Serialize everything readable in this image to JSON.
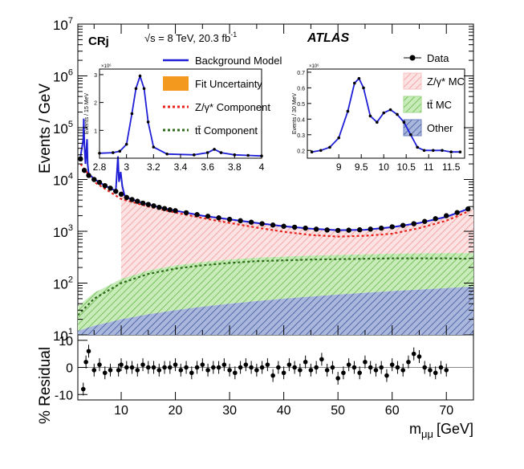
{
  "chart_data": [
    {
      "type": "area",
      "panel": "main",
      "ylabel": "Events / GeV",
      "xlim": [
        2,
        75
      ],
      "ylim_log10": [
        1,
        7
      ],
      "yscale": "log",
      "y_ticks": [
        {
          "label": "10",
          "exp": "1",
          "v": 10
        },
        {
          "label": "10",
          "exp": "2",
          "v": 100
        },
        {
          "label": "10",
          "exp": "3",
          "v": 1000
        },
        {
          "label": "10",
          "exp": "4",
          "v": 10000
        },
        {
          "label": "10",
          "exp": "5",
          "v": 100000
        },
        {
          "label": "10",
          "exp": "6",
          "v": 1000000
        },
        {
          "label": "10",
          "exp": "7",
          "v": 10000000
        }
      ],
      "annotations": {
        "region": "CRj",
        "energy": "√s = 8 TeV, 20.3 fb",
        "energy_sup": "-1",
        "experiment": "ATLAS"
      },
      "legend_left": [
        {
          "label": "Background Model",
          "style": "line",
          "color": "#1f1fd6"
        },
        {
          "label": "Fit Uncertainty",
          "style": "box",
          "color": "#f39a1e"
        },
        {
          "label": "Z/γ* Component",
          "style": "dotted",
          "color": "#e8231e"
        },
        {
          "label": "tt̄ Component",
          "style": "dotted",
          "color": "#2e6b1a"
        }
      ],
      "legend_right": [
        {
          "label": "Data",
          "style": "marker",
          "color": "#000000"
        },
        {
          "label": "Z/γ* MC",
          "style": "hatch",
          "color": "#f7c3c3"
        },
        {
          "label": "tt̄ MC",
          "style": "hatch",
          "color": "#9fd98a"
        },
        {
          "label": "Other",
          "style": "hatch",
          "color": "#6c7fbf"
        }
      ],
      "series": [
        {
          "name": "Data",
          "x": [
            2.5,
            3.2,
            4,
            5,
            6,
            7,
            8,
            9,
            10,
            11,
            12,
            13,
            14,
            15,
            16,
            17,
            18,
            19,
            20,
            22,
            24,
            26,
            28,
            30,
            32,
            34,
            36,
            38,
            40,
            42,
            44,
            46,
            48,
            50,
            52,
            54,
            56,
            58,
            60,
            62,
            64,
            66,
            68,
            70,
            72,
            74
          ],
          "y": [
            25000,
            15000,
            12000,
            10000,
            8800,
            7600,
            6800,
            5900,
            5200,
            4500,
            4100,
            3800,
            3500,
            3300,
            3100,
            2900,
            2750,
            2600,
            2500,
            2280,
            2100,
            1950,
            1820,
            1700,
            1600,
            1500,
            1400,
            1320,
            1250,
            1200,
            1150,
            1100,
            1060,
            1040,
            1050,
            1070,
            1100,
            1150,
            1220,
            1300,
            1400,
            1550,
            1750,
            2000,
            2300,
            2700
          ]
        },
        {
          "name": "Background Model",
          "x": [
            2.5,
            3.0,
            3.1,
            3.2,
            3.4,
            3.7,
            3.8,
            4,
            5,
            6,
            7,
            8,
            9,
            9.4,
            9.6,
            9.9,
            10.2,
            10.6,
            11,
            12,
            14,
            16,
            18,
            20,
            25,
            30,
            35,
            40,
            45,
            50,
            55,
            60,
            65,
            70,
            74
          ],
          "y": [
            28000,
            60000,
            150000,
            50000,
            20000,
            60000,
            20000,
            13000,
            10200,
            8800,
            7600,
            6800,
            6000,
            28000,
            9000,
            14000,
            7500,
            5000,
            4600,
            4100,
            3500,
            3100,
            2750,
            2500,
            2000,
            1700,
            1450,
            1250,
            1120,
            1050,
            1070,
            1200,
            1450,
            1900,
            2700
          ]
        },
        {
          "name": "Z/γ* Component",
          "x": [
            2.5,
            5,
            10,
            15,
            20,
            25,
            30,
            35,
            40,
            45,
            50,
            55,
            60,
            65,
            70,
            74
          ],
          "y": [
            20000,
            9000,
            4200,
            3000,
            2300,
            1800,
            1450,
            1180,
            980,
            850,
            790,
            820,
            900,
            1150,
            1600,
            2400
          ]
        },
        {
          "name": "tt̄ Component",
          "x": [
            2,
            5,
            10,
            15,
            20,
            25,
            30,
            35,
            40,
            45,
            50,
            55,
            60,
            65,
            70,
            74
          ],
          "y": [
            24,
            50,
            100,
            150,
            190,
            220,
            245,
            265,
            275,
            285,
            290,
            295,
            300,
            300,
            300,
            295
          ]
        },
        {
          "name": "Other",
          "x": [
            2,
            5,
            10,
            15,
            20,
            25,
            30,
            35,
            40,
            45,
            50,
            55,
            60,
            65,
            70,
            74
          ],
          "y": [
            12,
            15,
            20,
            25,
            30,
            35,
            40,
            45,
            50,
            55,
            60,
            65,
            70,
            75,
            80,
            85
          ]
        }
      ],
      "inset_left": {
        "ylabel": "Events / 15 MeV",
        "yexp": "×10⁶",
        "xlim": [
          2.8,
          4.0
        ],
        "ylim": [
          0,
          3.2
        ],
        "x_ticks": [
          "2.8",
          "3",
          "3.2",
          "3.4",
          "3.6",
          "3.8",
          "4"
        ],
        "y_ticks": [
          "1",
          "2",
          "3"
        ],
        "y_tick_values": [
          1,
          2,
          3
        ],
        "x_tick_values": [
          2.8,
          3.0,
          3.2,
          3.4,
          3.6,
          3.8,
          4.0
        ],
        "x": [
          2.8,
          2.9,
          2.95,
          3.0,
          3.04,
          3.07,
          3.1,
          3.13,
          3.16,
          3.2,
          3.3,
          3.5,
          3.6,
          3.65,
          3.7,
          3.8,
          3.9,
          4.0
        ],
        "y": [
          0.18,
          0.2,
          0.25,
          0.5,
          1.6,
          2.5,
          2.95,
          2.5,
          1.3,
          0.4,
          0.15,
          0.12,
          0.2,
          0.32,
          0.2,
          0.12,
          0.1,
          0.08
        ]
      },
      "inset_right": {
        "ylabel": "Events / 30 MeV",
        "yexp": "×10⁶",
        "xlim": [
          8.3,
          11.8
        ],
        "ylim": [
          0.15,
          0.72
        ],
        "x_ticks": [
          "9",
          "9.5",
          "10",
          "10.5",
          "11",
          "11.5"
        ],
        "y_ticks": [
          "0.2",
          "0.3",
          "0.4",
          "0.5",
          "0.6",
          "0.7"
        ],
        "y_tick_values": [
          0.2,
          0.3,
          0.4,
          0.5,
          0.6,
          0.7
        ],
        "x_tick_values": [
          9,
          9.5,
          10,
          10.5,
          11,
          11.5
        ],
        "x": [
          8.4,
          8.6,
          8.8,
          9.0,
          9.2,
          9.35,
          9.45,
          9.55,
          9.7,
          9.85,
          10.0,
          10.15,
          10.3,
          10.45,
          10.6,
          10.75,
          10.9,
          11.1,
          11.3,
          11.5,
          11.7
        ],
        "y": [
          0.19,
          0.2,
          0.22,
          0.28,
          0.45,
          0.63,
          0.66,
          0.6,
          0.42,
          0.38,
          0.44,
          0.46,
          0.43,
          0.38,
          0.3,
          0.22,
          0.2,
          0.2,
          0.2,
          0.19,
          0.19
        ]
      }
    },
    {
      "type": "scatter",
      "panel": "residual",
      "ylabel": "% Residual",
      "xlabel": "m",
      "xlabel_sub": "μμ",
      "xlabel_unit": "[GeV]",
      "xlim": [
        2,
        75
      ],
      "ylim": [
        -12,
        12
      ],
      "x_ticks": [
        "10",
        "20",
        "30",
        "40",
        "50",
        "60",
        "70"
      ],
      "x_tick_values": [
        10,
        20,
        30,
        40,
        50,
        60,
        70
      ],
      "y_ticks": [
        "-10",
        "0",
        "10"
      ],
      "y_tick_values": [
        -10,
        0,
        10
      ],
      "x": [
        3,
        3.5,
        4,
        5,
        6,
        7,
        8,
        9.5,
        10,
        11,
        12,
        13,
        14,
        15,
        16,
        17,
        18,
        19,
        20,
        21,
        22,
        23,
        24,
        25,
        26,
        27,
        28,
        29,
        30,
        31,
        32,
        33,
        34,
        35,
        36,
        37,
        38,
        39,
        40,
        41,
        42,
        43,
        44,
        45,
        46,
        47,
        48,
        49,
        50,
        51,
        52,
        53,
        54,
        55,
        56,
        57,
        58,
        59,
        60,
        61,
        62,
        63,
        64,
        65,
        66,
        67,
        68,
        69,
        70
      ],
      "y": [
        -8,
        2,
        6,
        -1,
        1,
        -2,
        -1,
        -1,
        1,
        0,
        0,
        -1,
        1,
        0,
        0,
        -1,
        0,
        0,
        1,
        -1,
        0,
        -2,
        0,
        1,
        -1,
        0,
        0,
        1,
        -1,
        -2,
        0,
        1,
        0,
        -1,
        0,
        1,
        -3,
        0,
        -2,
        1,
        0,
        -1,
        2,
        -1,
        0,
        3,
        -1,
        0,
        -4,
        -2,
        1,
        0,
        -2,
        2,
        0,
        -1,
        0,
        -3,
        1,
        0,
        -1,
        2,
        5,
        4,
        0,
        -1,
        -2,
        0,
        -1
      ]
    }
  ]
}
